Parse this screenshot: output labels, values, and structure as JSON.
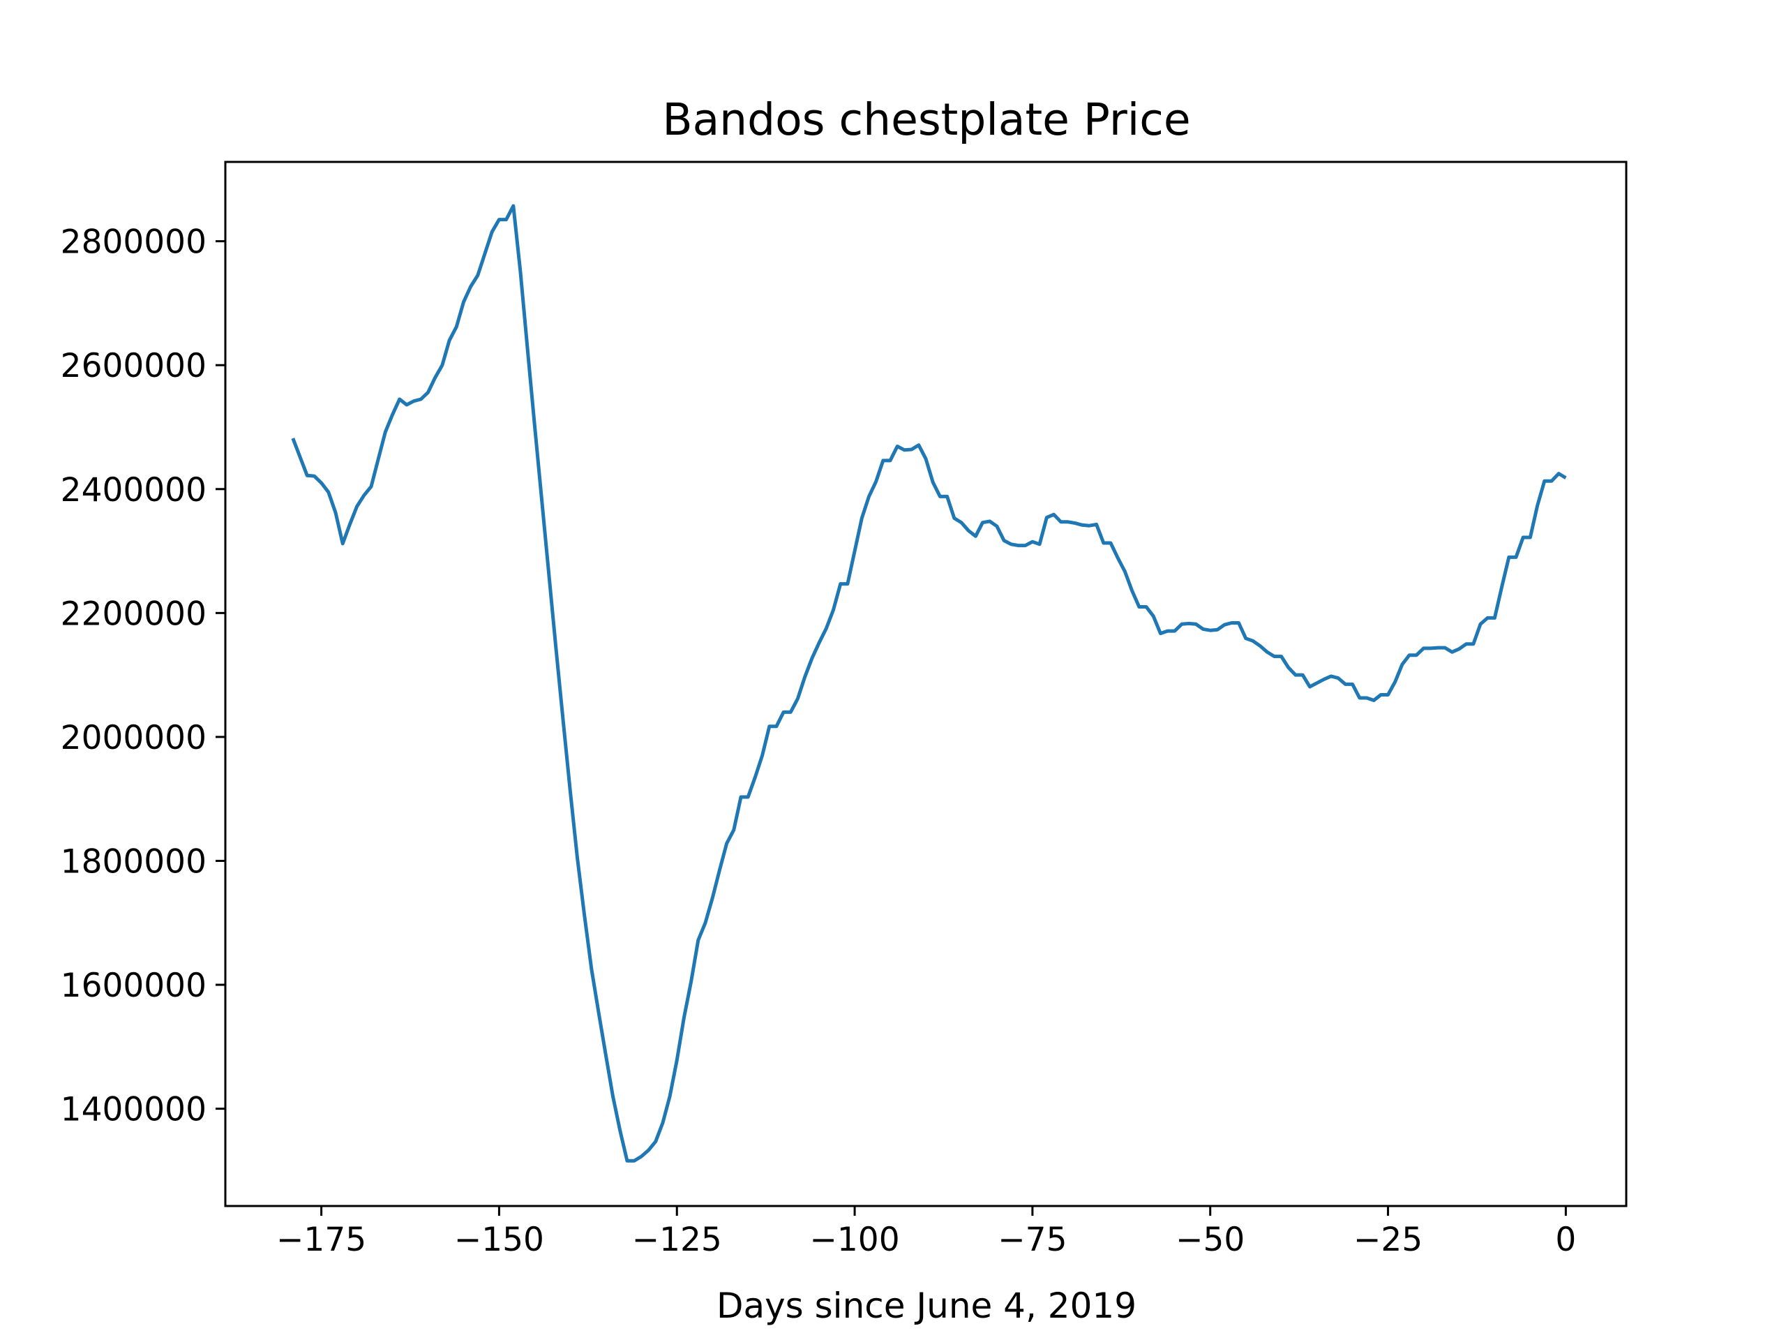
{
  "chart_data": {
    "type": "line",
    "title": "Bandos chestplate Price",
    "xlabel": "Days since June 4, 2019",
    "ylabel": "",
    "xlim": [
      -188.5,
      8.5
    ],
    "ylim": [
      1243000,
      2928000
    ],
    "xticks": [
      -175,
      -150,
      -125,
      -100,
      -75,
      -50,
      -25,
      0
    ],
    "xtick_labels": [
      "−175",
      "−150",
      "−125",
      "−100",
      "−75",
      "−50",
      "−25",
      "0"
    ],
    "yticks": [
      1400000,
      1600000,
      1800000,
      2000000,
      2200000,
      2400000,
      2600000,
      2800000
    ],
    "ytick_labels": [
      "1400000",
      "1600000",
      "1800000",
      "2000000",
      "2200000",
      "2400000",
      "2600000",
      "2800000"
    ],
    "grid": false,
    "legend": "none",
    "series": [
      {
        "color": "#1f77b4",
        "points": [
          [
            -179,
            2482000
          ],
          [
            -178,
            2452000
          ],
          [
            -177,
            2422000
          ],
          [
            -176,
            2421000
          ],
          [
            -175,
            2410000
          ],
          [
            -174,
            2395000
          ],
          [
            -173,
            2362000
          ],
          [
            -172,
            2312000
          ],
          [
            -171,
            2343000
          ],
          [
            -170,
            2372000
          ],
          [
            -169,
            2390000
          ],
          [
            -168,
            2404000
          ],
          [
            -167,
            2448000
          ],
          [
            -166,
            2492000
          ],
          [
            -165,
            2520000
          ],
          [
            -164,
            2545000
          ],
          [
            -163,
            2536000
          ],
          [
            -162,
            2542000
          ],
          [
            -161,
            2545000
          ],
          [
            -160,
            2556000
          ],
          [
            -159,
            2580000
          ],
          [
            -158,
            2600000
          ],
          [
            -157,
            2640000
          ],
          [
            -156,
            2662000
          ],
          [
            -155,
            2702000
          ],
          [
            -154,
            2727000
          ],
          [
            -153,
            2745000
          ],
          [
            -152,
            2780000
          ],
          [
            -151,
            2815000
          ],
          [
            -150,
            2835000
          ],
          [
            -149,
            2835000
          ],
          [
            -148,
            2857000
          ],
          [
            -147,
            2750000
          ],
          [
            -146,
            2625000
          ],
          [
            -145,
            2502000
          ],
          [
            -144,
            2382000
          ],
          [
            -143,
            2262000
          ],
          [
            -142,
            2142000
          ],
          [
            -141,
            2026000
          ],
          [
            -140,
            1912000
          ],
          [
            -139,
            1805000
          ],
          [
            -138,
            1712000
          ],
          [
            -137,
            1625000
          ],
          [
            -136,
            1555000
          ],
          [
            -135,
            1487000
          ],
          [
            -134,
            1420000
          ],
          [
            -133,
            1365000
          ],
          [
            -132,
            1316000
          ],
          [
            -131,
            1316000
          ],
          [
            -130,
            1323000
          ],
          [
            -129,
            1333000
          ],
          [
            -128,
            1347000
          ],
          [
            -127,
            1377000
          ],
          [
            -126,
            1420000
          ],
          [
            -125,
            1478000
          ],
          [
            -124,
            1547000
          ],
          [
            -123,
            1605000
          ],
          [
            -122,
            1672000
          ],
          [
            -121,
            1700000
          ],
          [
            -120,
            1740000
          ],
          [
            -119,
            1785000
          ],
          [
            -118,
            1828000
          ],
          [
            -117,
            1850000
          ],
          [
            -116,
            1903000
          ],
          [
            -115,
            1903000
          ],
          [
            -114,
            1935000
          ],
          [
            -113,
            1970000
          ],
          [
            -112,
            2017000
          ],
          [
            -111,
            2017000
          ],
          [
            -110,
            2040000
          ],
          [
            -109,
            2040000
          ],
          [
            -108,
            2062000
          ],
          [
            -107,
            2097000
          ],
          [
            -106,
            2127000
          ],
          [
            -105,
            2152000
          ],
          [
            -104,
            2175000
          ],
          [
            -103,
            2205000
          ],
          [
            -102,
            2247000
          ],
          [
            -101,
            2247000
          ],
          [
            -100,
            2300000
          ],
          [
            -99,
            2353000
          ],
          [
            -98,
            2388000
          ],
          [
            -97,
            2412000
          ],
          [
            -96,
            2446000
          ],
          [
            -95,
            2446000
          ],
          [
            -94,
            2469000
          ],
          [
            -93,
            2463000
          ],
          [
            -92,
            2464000
          ],
          [
            -91,
            2471000
          ],
          [
            -90,
            2449000
          ],
          [
            -89,
            2411000
          ],
          [
            -88,
            2388000
          ],
          [
            -87,
            2388000
          ],
          [
            -86,
            2353000
          ],
          [
            -85,
            2346000
          ],
          [
            -84,
            2333000
          ],
          [
            -83,
            2324000
          ],
          [
            -82,
            2346000
          ],
          [
            -81,
            2348000
          ],
          [
            -80,
            2340000
          ],
          [
            -79,
            2317000
          ],
          [
            -78,
            2311000
          ],
          [
            -77,
            2309000
          ],
          [
            -76,
            2309000
          ],
          [
            -75,
            2315000
          ],
          [
            -74,
            2311000
          ],
          [
            -73,
            2354000
          ],
          [
            -72,
            2359000
          ],
          [
            -71,
            2347000
          ],
          [
            -70,
            2347000
          ],
          [
            -69,
            2345000
          ],
          [
            -68,
            2342000
          ],
          [
            -67,
            2341000
          ],
          [
            -66,
            2343000
          ],
          [
            -65,
            2313000
          ],
          [
            -64,
            2313000
          ],
          [
            -63,
            2289000
          ],
          [
            -62,
            2267000
          ],
          [
            -61,
            2236000
          ],
          [
            -60,
            2210000
          ],
          [
            -59,
            2210000
          ],
          [
            -58,
            2195000
          ],
          [
            -57,
            2167000
          ],
          [
            -56,
            2171000
          ],
          [
            -55,
            2171000
          ],
          [
            -54,
            2182000
          ],
          [
            -53,
            2183000
          ],
          [
            -52,
            2182000
          ],
          [
            -51,
            2174000
          ],
          [
            -50,
            2172000
          ],
          [
            -49,
            2173000
          ],
          [
            -48,
            2181000
          ],
          [
            -47,
            2184000
          ],
          [
            -46,
            2184000
          ],
          [
            -45,
            2159000
          ],
          [
            -44,
            2155000
          ],
          [
            -43,
            2147000
          ],
          [
            -42,
            2137000
          ],
          [
            -41,
            2130000
          ],
          [
            -40,
            2130000
          ],
          [
            -39,
            2112000
          ],
          [
            -38,
            2100000
          ],
          [
            -37,
            2100000
          ],
          [
            -36,
            2081000
          ],
          [
            -35,
            2087000
          ],
          [
            -34,
            2093000
          ],
          [
            -33,
            2098000
          ],
          [
            -32,
            2095000
          ],
          [
            -31,
            2085000
          ],
          [
            -30,
            2085000
          ],
          [
            -29,
            2063000
          ],
          [
            -28,
            2063000
          ],
          [
            -27,
            2059000
          ],
          [
            -26,
            2068000
          ],
          [
            -25,
            2068000
          ],
          [
            -24,
            2089000
          ],
          [
            -23,
            2117000
          ],
          [
            -22,
            2132000
          ],
          [
            -21,
            2132000
          ],
          [
            -20,
            2143000
          ],
          [
            -19,
            2143000
          ],
          [
            -18,
            2144000
          ],
          [
            -17,
            2144000
          ],
          [
            -16,
            2137000
          ],
          [
            -15,
            2142000
          ],
          [
            -14,
            2150000
          ],
          [
            -13,
            2150000
          ],
          [
            -12,
            2182000
          ],
          [
            -11,
            2192000
          ],
          [
            -10,
            2192000
          ],
          [
            -9,
            2242000
          ],
          [
            -8,
            2290000
          ],
          [
            -7,
            2290000
          ],
          [
            -6,
            2322000
          ],
          [
            -5,
            2322000
          ],
          [
            -4,
            2373000
          ],
          [
            -3,
            2413000
          ],
          [
            -2,
            2413000
          ],
          [
            -1,
            2425000
          ],
          [
            0,
            2418000
          ]
        ]
      }
    ]
  }
}
